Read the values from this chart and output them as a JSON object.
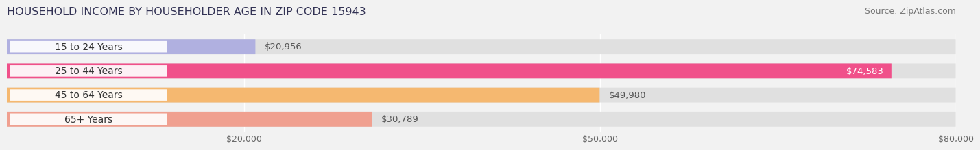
{
  "title": "HOUSEHOLD INCOME BY HOUSEHOLDER AGE IN ZIP CODE 15943",
  "source": "Source: ZipAtlas.com",
  "categories": [
    "15 to 24 Years",
    "25 to 44 Years",
    "45 to 64 Years",
    "65+ Years"
  ],
  "values": [
    20956,
    74583,
    49980,
    30789
  ],
  "bar_colors": [
    "#b0b0e0",
    "#f0508a",
    "#f5b870",
    "#f0a090"
  ],
  "dot_colors": [
    "#8888cc",
    "#e03070",
    "#e89040",
    "#e07060"
  ],
  "label_colors": [
    "#333333",
    "#333333",
    "#333333",
    "#333333"
  ],
  "value_label_colors": [
    "#555555",
    "#ffffff",
    "#555555",
    "#555555"
  ],
  "value_labels": [
    "$20,956",
    "$74,583",
    "$49,980",
    "$30,789"
  ],
  "xlim": [
    0,
    80000
  ],
  "xticks": [
    20000,
    50000,
    80000
  ],
  "xtick_labels": [
    "$20,000",
    "$50,000",
    "$80,000"
  ],
  "background_color": "#f2f2f2",
  "bar_background": "#e0e0e0",
  "title_fontsize": 11.5,
  "source_fontsize": 9,
  "label_fontsize": 10,
  "value_fontsize": 9.5,
  "tick_fontsize": 9,
  "bar_height": 0.62,
  "n_bars": 4
}
